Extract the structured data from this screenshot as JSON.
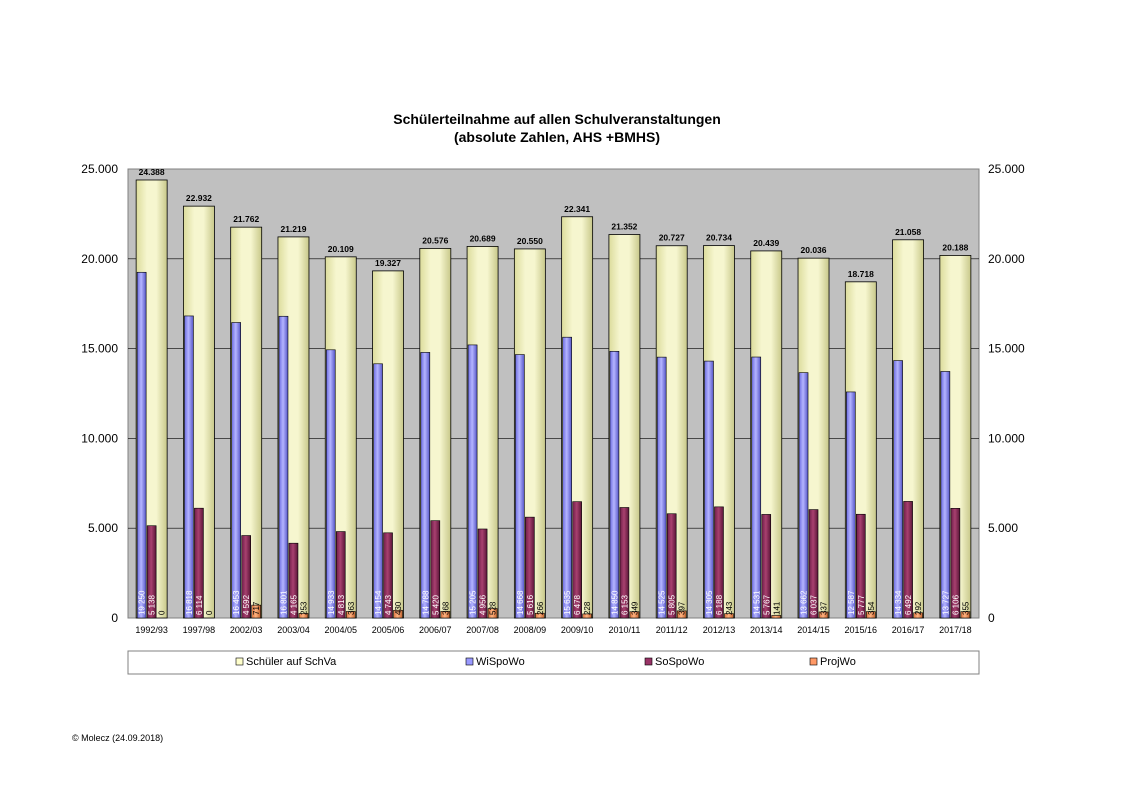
{
  "chart_data": {
    "type": "bar",
    "title": [
      "Schülerteilnahme auf allen Schulveranstaltungen",
      "(absolute Zahlen, AHS +BMHS)"
    ],
    "ylim": [
      0,
      25000
    ],
    "yticks": [
      0,
      5000,
      10000,
      15000,
      20000,
      25000
    ],
    "ytick_labels": [
      "0",
      "5.000",
      "10.000",
      "15.000",
      "20.000",
      "25.000"
    ],
    "grid": true,
    "legend_position": "bottom",
    "categories": [
      "1992/93",
      "1997/98",
      "2002/03",
      "2003/04",
      "2004/05",
      "2005/06",
      "2006/07",
      "2007/08",
      "2008/09",
      "2009/10",
      "2010/11",
      "2011/12",
      "2012/13",
      "2013/14",
      "2014/15",
      "2015/16",
      "2016/17",
      "2017/18"
    ],
    "series": [
      {
        "name": "Schüler auf SchVa",
        "color": "#FFFFCC",
        "values": [
          24388,
          22932,
          21762,
          21219,
          20109,
          19327,
          20576,
          20689,
          20550,
          22341,
          21352,
          20727,
          20734,
          20439,
          20036,
          18718,
          21058,
          20188
        ],
        "labels": [
          "24.388",
          "22.932",
          "21.762",
          "21.219",
          "20.109",
          "19.327",
          "20.576",
          "20.689",
          "20.550",
          "22.341",
          "21.352",
          "20.727",
          "20.734",
          "20.439",
          "20.036",
          "18.718",
          "21.058",
          "20.188"
        ]
      },
      {
        "name": "WiSpoWo",
        "color": "#9999FF",
        "values": [
          19250,
          16818,
          16453,
          16801,
          14933,
          14154,
          14788,
          15205,
          14668,
          15635,
          14850,
          14525,
          14305,
          14531,
          13662,
          12587,
          14334,
          13727
        ],
        "labels": [
          "19 250",
          "16 818",
          "16 453",
          "16 801",
          "14 933",
          "14 154",
          "14 788",
          "15 205",
          "14 668",
          "15 635",
          "14 850",
          "14 525",
          "14 305",
          "14 531",
          "13 662",
          "12 587",
          "14 334",
          "13 727"
        ]
      },
      {
        "name": "SoSpoWo",
        "color": "#993366",
        "values": [
          5138,
          6114,
          4592,
          4165,
          4813,
          4743,
          5420,
          4956,
          5616,
          6478,
          6153,
          5805,
          6188,
          5767,
          6037,
          5777,
          6492,
          6106
        ],
        "labels": [
          "5 138",
          "6 114",
          "4 592",
          "4 165",
          "4 813",
          "4 743",
          "5 420",
          "4 956",
          "5 616",
          "6 478",
          "6 153",
          "5 805",
          "6 188",
          "5 767",
          "6 037",
          "5 777",
          "6 492",
          "6 106"
        ]
      },
      {
        "name": "ProjWo",
        "color": "#FF9966",
        "values": [
          0,
          0,
          717,
          253,
          363,
          430,
          368,
          528,
          266,
          228,
          349,
          397,
          243,
          141,
          337,
          354,
          292,
          355
        ],
        "labels": [
          "0",
          "0",
          "717",
          "253",
          "363",
          "430",
          "368",
          "528",
          "266",
          "228",
          "349",
          "397",
          "243",
          "141",
          "337",
          "354",
          "292",
          "355"
        ]
      }
    ]
  },
  "footer": {
    "copyright": "© Molecz (24.09.2018)"
  }
}
